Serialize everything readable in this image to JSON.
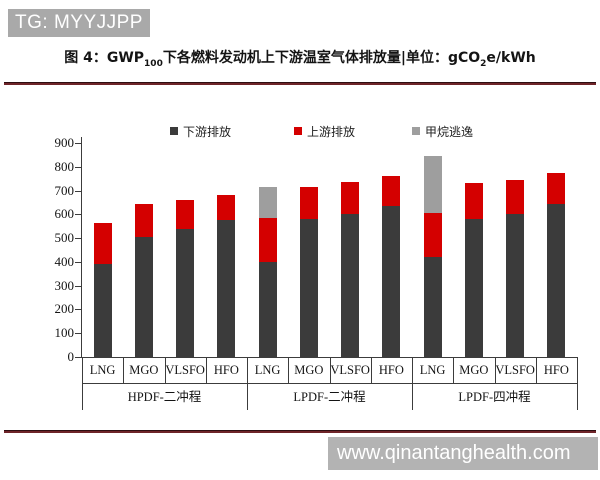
{
  "watermarks": {
    "top": "TG: MYYJJPP",
    "bottom": "www.qinantanghealth.com"
  },
  "title": {
    "prefix": "图 4：GWP",
    "sub1": "100",
    "mid": "下各燃料发动机上下游温室气体排放量|单位：gCO",
    "sub2": "2",
    "suffix": "e/kWh"
  },
  "chart_data": {
    "type": "bar",
    "stacked": true,
    "title": "图 4：GWP100下各燃料发动机上下游温室气体排放量",
    "unit": "gCO2e/kWh",
    "xlabel": "",
    "ylabel": "",
    "ylim": [
      0,
      900
    ],
    "ytick_step": 100,
    "grid": false,
    "legend_position": "top",
    "groups": [
      {
        "label": "HPDF-二冲程",
        "categories": [
          "LNG",
          "MGO",
          "VLSFO",
          "HFO"
        ]
      },
      {
        "label": "LPDF-二冲程",
        "categories": [
          "LNG",
          "MGO",
          "VLSFO",
          "HFO"
        ]
      },
      {
        "label": "LPDF-四冲程",
        "categories": [
          "LNG",
          "MGO",
          "VLSFO",
          "HFO"
        ]
      }
    ],
    "series": [
      {
        "name": "下游排放",
        "color": "#3b3b3b",
        "values": [
          390,
          505,
          540,
          575,
          400,
          580,
          600,
          635,
          420,
          580,
          600,
          645
        ]
      },
      {
        "name": "上游排放",
        "color": "#d40000",
        "values": [
          175,
          140,
          120,
          105,
          185,
          135,
          135,
          125,
          185,
          150,
          145,
          130
        ]
      },
      {
        "name": "甲烷逃逸",
        "color": "#9e9e9e",
        "values": [
          0,
          0,
          0,
          0,
          130,
          0,
          0,
          0,
          240,
          0,
          0,
          0
        ]
      }
    ],
    "totals": [
      565,
      645,
      660,
      680,
      715,
      715,
      735,
      760,
      845,
      730,
      745,
      775
    ]
  }
}
